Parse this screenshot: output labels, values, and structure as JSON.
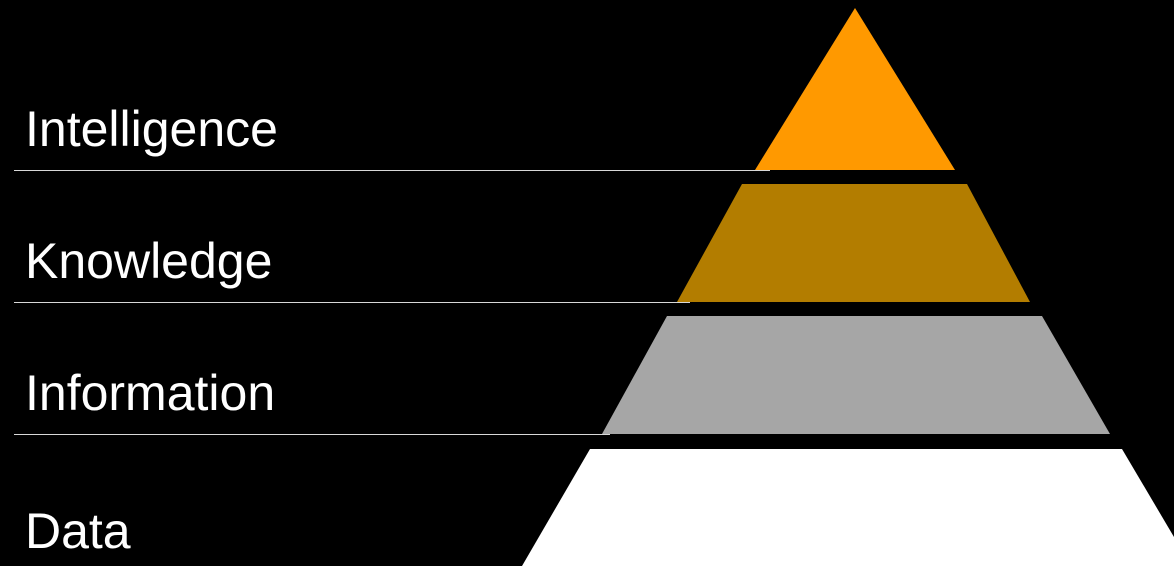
{
  "levels": [
    {
      "label": "Intelligence",
      "color": "#ff9900"
    },
    {
      "label": "Knowledge",
      "color": "#b37d00"
    },
    {
      "label": "Information",
      "color": "#a6a6a6"
    },
    {
      "label": "Data",
      "color": "#ffffff"
    }
  ],
  "background_color": "#000000"
}
